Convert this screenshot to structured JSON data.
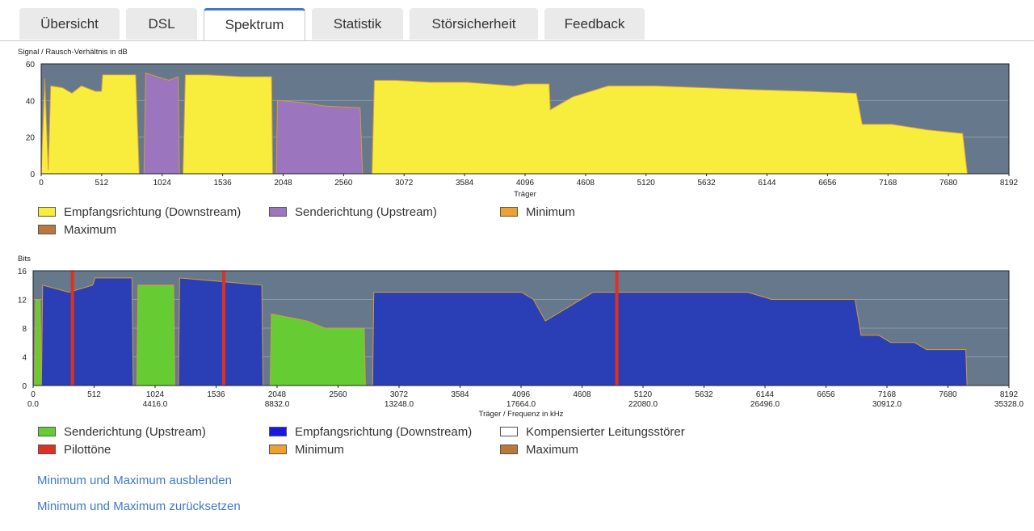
{
  "tabs": [
    {
      "label": "Übersicht",
      "active": false
    },
    {
      "label": "DSL",
      "active": false
    },
    {
      "label": "Spektrum",
      "active": true
    },
    {
      "label": "Statistik",
      "active": false
    },
    {
      "label": "Störsicherheit",
      "active": false
    },
    {
      "label": "Feedback",
      "active": false
    }
  ],
  "snr_chart": {
    "title": "Signal / Rausch-Verhältnis in dB",
    "xlabel": "Träger",
    "y_ticks": [
      "60",
      "40",
      "20",
      "0"
    ],
    "x_ticks": [
      "0",
      "512",
      "1024",
      "1536",
      "2048",
      "2560",
      "3072",
      "3584",
      "4096",
      "4608",
      "5120",
      "5632",
      "6144",
      "6656",
      "7168",
      "7680",
      "8192"
    ],
    "legend": [
      {
        "label": "Empfangsrichtung (Downstream)",
        "color": "#f8ec3d"
      },
      {
        "label": "Senderichtung (Upstream)",
        "color": "#9b75bd"
      },
      {
        "label": "Minimum",
        "color": "#f0a030"
      },
      {
        "label": "Maximum",
        "color": "#b87a3a"
      }
    ]
  },
  "bits_chart": {
    "title": "Bits",
    "xlabel": "Träger / Frequenz in kHz",
    "y_ticks": [
      "16",
      "12",
      "8",
      "4",
      "0"
    ],
    "x_ticks": [
      "0",
      "512",
      "1024",
      "1536",
      "2048",
      "2560",
      "3072",
      "3584",
      "4096",
      "4608",
      "5120",
      "5632",
      "6144",
      "6656",
      "7168",
      "7680",
      "8192"
    ],
    "freq_ticks": [
      "0.0",
      "4416.0",
      "8832.0",
      "13248.0",
      "17664.0",
      "22080.0",
      "26496.0",
      "30912.0",
      "35328.0"
    ],
    "legend": [
      {
        "label": "Senderichtung (Upstream)",
        "color": "#66cc33"
      },
      {
        "label": "Empfangsrichtung (Downstream)",
        "color": "#1a1adf"
      },
      {
        "label": "Kompensierter Leitungsstörer",
        "color": "#ffffff"
      },
      {
        "label": "Pilottöne",
        "color": "#e03020"
      },
      {
        "label": "Minimum",
        "color": "#f0a030"
      },
      {
        "label": "Maximum",
        "color": "#b87a3a"
      }
    ]
  },
  "chart_data": [
    {
      "type": "area",
      "ylabel": "Signal / Rausch-Verhältnis in dB",
      "xlabel": "Träger",
      "xlim": [
        0,
        8192
      ],
      "ylim": [
        0,
        60
      ],
      "series": [
        {
          "name": "Empfangsrichtung (Downstream)",
          "segments": [
            [
              [
                0,
                0
              ],
              [
                30,
                52
              ],
              [
                60,
                2
              ],
              [
                80,
                48
              ],
              [
                180,
                47
              ],
              [
                260,
                44
              ],
              [
                340,
                48
              ],
              [
                460,
                45
              ],
              [
                510,
                45
              ],
              [
                520,
                54
              ],
              [
                800,
                54
              ],
              [
                830,
                0
              ]
            ]
          ],
          "color": "#f8ec3d"
        },
        {
          "name": "Empfangsrichtung (Downstream)",
          "segments": [
            [
              [
                1200,
                0
              ],
              [
                1220,
                54
              ],
              [
                1400,
                54
              ],
              [
                1700,
                53
              ],
              [
                1950,
                53
              ],
              [
                1960,
                0
              ]
            ]
          ],
          "color": "#f8ec3d"
        },
        {
          "name": "Empfangsrichtung (Downstream)",
          "segments": [
            [
              [
                2800,
                0
              ],
              [
                2820,
                51
              ],
              [
                3000,
                51
              ],
              [
                3300,
                50
              ],
              [
                3600,
                50
              ],
              [
                4000,
                48
              ],
              [
                4100,
                49
              ],
              [
                4300,
                49
              ],
              [
                4310,
                35
              ],
              [
                4500,
                42
              ],
              [
                4800,
                48
              ],
              [
                5200,
                48
              ],
              [
                5600,
                47
              ],
              [
                6000,
                46
              ],
              [
                6500,
                45
              ],
              [
                6900,
                44
              ],
              [
                6950,
                27
              ],
              [
                7200,
                27
              ],
              [
                7500,
                24
              ],
              [
                7800,
                22
              ],
              [
                7840,
                0
              ]
            ]
          ],
          "color": "#f8ec3d"
        },
        {
          "name": "Senderichtung (Upstream)",
          "segments": [
            [
              [
                870,
                0
              ],
              [
                885,
                55
              ],
              [
                980,
                53
              ],
              [
                1080,
                51
              ],
              [
                1160,
                53
              ],
              [
                1170,
                0
              ]
            ]
          ],
          "color": "#9b75bd"
        },
        {
          "name": "Senderichtung (Upstream)",
          "segments": [
            [
              [
                1990,
                0
              ],
              [
                2000,
                40
              ],
              [
                2200,
                39
              ],
              [
                2400,
                37
              ],
              [
                2700,
                36
              ],
              [
                2720,
                0
              ]
            ]
          ],
          "color": "#9b75bd"
        }
      ]
    },
    {
      "type": "area",
      "ylabel": "Bits",
      "xlabel": "Träger / Frequenz in kHz",
      "xlim": [
        0,
        8192
      ],
      "ylim": [
        0,
        16
      ],
      "series": [
        {
          "name": "Senderichtung (Upstream)",
          "segments": [
            [
              [
                10,
                0
              ],
              [
                20,
                12
              ],
              [
                60,
                12
              ],
              [
                70,
                0
              ]
            ],
            [
              [
                870,
                0
              ],
              [
                880,
                14
              ],
              [
                1180,
                14
              ],
              [
                1190,
                0
              ]
            ],
            [
              [
                1990,
                0
              ],
              [
                2000,
                10
              ],
              [
                2300,
                9
              ],
              [
                2450,
                8
              ],
              [
                2780,
                8
              ],
              [
                2790,
                0
              ]
            ]
          ],
          "color": "#66cc33"
        },
        {
          "name": "Empfangsrichtung (Downstream)",
          "segments": [
            [
              [
                70,
                0
              ],
              [
                80,
                14
              ],
              [
                300,
                13
              ],
              [
                500,
                14
              ],
              [
                520,
                15
              ],
              [
                830,
                15
              ],
              [
                840,
                0
              ]
            ],
            [
              [
                1220,
                0
              ],
              [
                1230,
                15
              ],
              [
                1920,
                14
              ],
              [
                1930,
                0
              ]
            ],
            [
              [
                2850,
                0
              ],
              [
                2860,
                13
              ],
              [
                4100,
                13
              ],
              [
                4200,
                12
              ],
              [
                4300,
                9
              ],
              [
                4500,
                11
              ],
              [
                4700,
                13
              ],
              [
                6000,
                13
              ],
              [
                6200,
                12
              ],
              [
                6900,
                12
              ],
              [
                6950,
                7
              ],
              [
                7100,
                7
              ],
              [
                7200,
                6
              ],
              [
                7400,
                6
              ],
              [
                7500,
                5
              ],
              [
                7830,
                5
              ],
              [
                7840,
                0
              ]
            ]
          ],
          "color": "#2a3fb5"
        },
        {
          "name": "Pilottöne",
          "x": [
            330,
            1600,
            4900
          ],
          "color": "#e03020"
        }
      ]
    }
  ],
  "links": {
    "hide_minmax": "Minimum und Maximum ausblenden",
    "reset_minmax": "Minimum und Maximum zurücksetzen"
  }
}
